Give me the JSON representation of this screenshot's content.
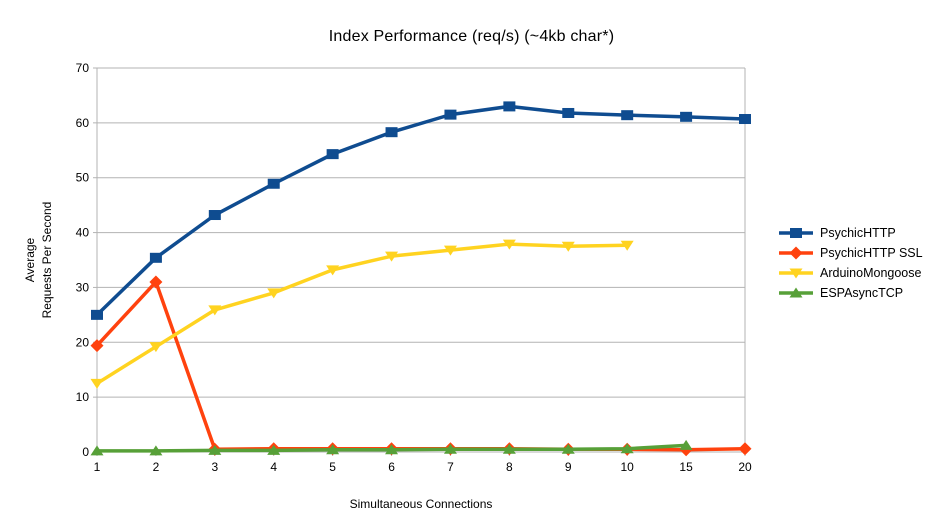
{
  "title": "Index Performance (req/s) (~4kb char*)",
  "chart_data": {
    "type": "line",
    "title": "Index Performance (req/s) (~4kb char*)",
    "xlabel": "Simultaneous Connections",
    "ylabel": "Average Requests Per Second",
    "ylabel_lines": [
      "Average",
      "Requests Per Second"
    ],
    "categories": [
      "1",
      "2",
      "3",
      "4",
      "5",
      "6",
      "7",
      "8",
      "9",
      "10",
      "15",
      "20"
    ],
    "ylim": [
      0,
      70
    ],
    "ytick_step": 10,
    "grid": true,
    "legend_position": "right",
    "colors": {
      "grid": "#b3b3b3",
      "axis": "#b3b3b3",
      "text": "#000000"
    },
    "series": [
      {
        "name": "PsychicHTTP",
        "color": "#0f4c90",
        "marker": "square",
        "values": [
          25.0,
          35.4,
          43.2,
          48.9,
          54.3,
          58.3,
          61.5,
          63.0,
          61.8,
          61.4,
          61.1,
          60.7
        ]
      },
      {
        "name": "PsychicHTTP SSL",
        "color": "#ff420e",
        "marker": "diamond",
        "values": [
          19.4,
          31.0,
          0.5,
          0.6,
          0.6,
          0.6,
          0.6,
          0.6,
          0.5,
          0.5,
          0.4,
          0.6
        ]
      },
      {
        "name": "ArduinoMongoose",
        "color": "#ffd320",
        "marker": "triangle-down",
        "values": [
          12.5,
          19.2,
          25.9,
          29.0,
          33.2,
          35.7,
          36.8,
          37.9,
          37.5,
          37.7,
          null,
          null
        ]
      },
      {
        "name": "ESPAsyncTCP",
        "color": "#57a038",
        "marker": "triangle-up",
        "values": [
          0.2,
          0.2,
          0.3,
          0.3,
          0.4,
          0.4,
          0.5,
          0.5,
          0.5,
          0.6,
          1.2,
          null
        ]
      }
    ]
  }
}
